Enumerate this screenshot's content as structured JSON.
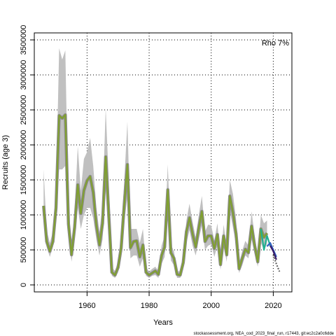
{
  "chart_data": {
    "type": "line",
    "title": "",
    "xlabel": "Years",
    "ylabel": "Recruits (age 3)",
    "annotation": "Rho 7%",
    "footer": "stockassessment.org, NEA_cod_2023_final_run, r17443, git:ec2c2a0c6dde",
    "xlim": [
      1943,
      2026
    ],
    "ylim": [
      -100000,
      3600000
    ],
    "x_ticks": [
      1960,
      1980,
      2000,
      2020
    ],
    "y_ticks": [
      0,
      500000,
      1000000,
      1500000,
      2000000,
      2500000,
      3000000,
      3500000
    ],
    "grid": true,
    "grid_style": "dotted",
    "colors": {
      "band": "#c0c0c0",
      "line_outline": "#8c8c8c",
      "main_line": "#80a030",
      "peel_lines": [
        "#20b090",
        "#3060c0",
        "#3a1a6a",
        "#606060"
      ]
    },
    "series": [
      {
        "x": [
          1946,
          1947,
          1948,
          1949,
          1950,
          1951,
          1952,
          1953,
          1954,
          1955,
          1956,
          1957,
          1958,
          1959,
          1960,
          1961,
          1962,
          1963,
          1964,
          1965,
          1966,
          1967,
          1968,
          1969,
          1970,
          1971,
          1972,
          1973,
          1974,
          1975,
          1976,
          1977,
          1978,
          1979,
          1980,
          1981,
          1982,
          1983,
          1984,
          1985,
          1986,
          1987,
          1988,
          1989,
          1990,
          1991,
          1992,
          1993,
          1994,
          1995,
          1996,
          1997,
          1998,
          1999,
          2000,
          2001,
          2002,
          2003,
          2004,
          2005,
          2006,
          2007,
          2008,
          2009,
          2010,
          2011,
          2012,
          2013,
          2014,
          2015,
          2016,
          2017,
          2018
        ],
        "values": [
          1130000,
          620000,
          480000,
          620000,
          1100000,
          2420000,
          2380000,
          2430000,
          870000,
          430000,
          820000,
          1430000,
          1020000,
          1350000,
          1490000,
          1550000,
          1320000,
          850000,
          570000,
          880000,
          1830000,
          1000000,
          180000,
          140000,
          250000,
          530000,
          1160000,
          1720000,
          530000,
          620000,
          630000,
          400000,
          570000,
          180000,
          140000,
          170000,
          200000,
          150000,
          420000,
          540000,
          1360000,
          460000,
          380000,
          150000,
          140000,
          320000,
          760000,
          960000,
          730000,
          540000,
          820000,
          1050000,
          620000,
          700000,
          700000,
          520000,
          720000,
          290000,
          700000,
          430000,
          1270000,
          1030000,
          730000,
          230000,
          380000,
          510000,
          460000,
          840000,
          560000,
          330000,
          800000,
          680000,
          740000
        ],
        "lower": [
          1080000,
          540000,
          400000,
          540000,
          1000000,
          1650000,
          1650000,
          1700000,
          730000,
          330000,
          650000,
          1100000,
          800000,
          1000000,
          1100000,
          1100000,
          950000,
          650000,
          420000,
          650000,
          1350000,
          650000,
          130000,
          100000,
          180000,
          400000,
          900000,
          1250000,
          380000,
          420000,
          420000,
          260000,
          380000,
          130000,
          100000,
          130000,
          140000,
          100000,
          300000,
          400000,
          1050000,
          350000,
          280000,
          100000,
          100000,
          230000,
          600000,
          780000,
          560000,
          420000,
          650000,
          850000,
          500000,
          560000,
          580000,
          400000,
          560000,
          220000,
          550000,
          330000,
          1060000,
          820000,
          570000,
          170000,
          280000,
          420000,
          380000,
          650000,
          440000,
          260000,
          600000,
          500000,
          580000
        ],
        "upper": [
          1650000,
          780000,
          600000,
          760000,
          1300000,
          3380000,
          3220000,
          3350000,
          1040000,
          560000,
          1050000,
          1980000,
          1350000,
          1800000,
          1900000,
          2100000,
          1700000,
          1100000,
          760000,
          1150000,
          2520000,
          1500000,
          250000,
          200000,
          340000,
          700000,
          1500000,
          2330000,
          800000,
          800000,
          800000,
          600000,
          800000,
          250000,
          190000,
          230000,
          260000,
          200000,
          560000,
          700000,
          1720000,
          580000,
          480000,
          200000,
          190000,
          420000,
          920000,
          1160000,
          900000,
          680000,
          1000000,
          1270000,
          760000,
          860000,
          850000,
          640000,
          880000,
          360000,
          860000,
          540000,
          1500000,
          1300000,
          940000,
          300000,
          490000,
          630000,
          560000,
          1050000,
          700000,
          420000,
          1000000,
          880000,
          920000
        ]
      },
      {
        "x": [
          2016,
          2017,
          2018,
          2019
        ],
        "values": [
          800000,
          500000,
          700000,
          560000
        ]
      },
      {
        "x": [
          2018,
          2019,
          2020,
          2021
        ],
        "values": [
          550000,
          600000,
          500000,
          400000
        ]
      },
      {
        "x": [
          2019,
          2020,
          2021
        ],
        "values": [
          560000,
          480000,
          360000
        ]
      },
      {
        "x": [
          2020,
          2021,
          2022
        ],
        "values": [
          430000,
          300000,
          190000
        ]
      }
    ]
  }
}
